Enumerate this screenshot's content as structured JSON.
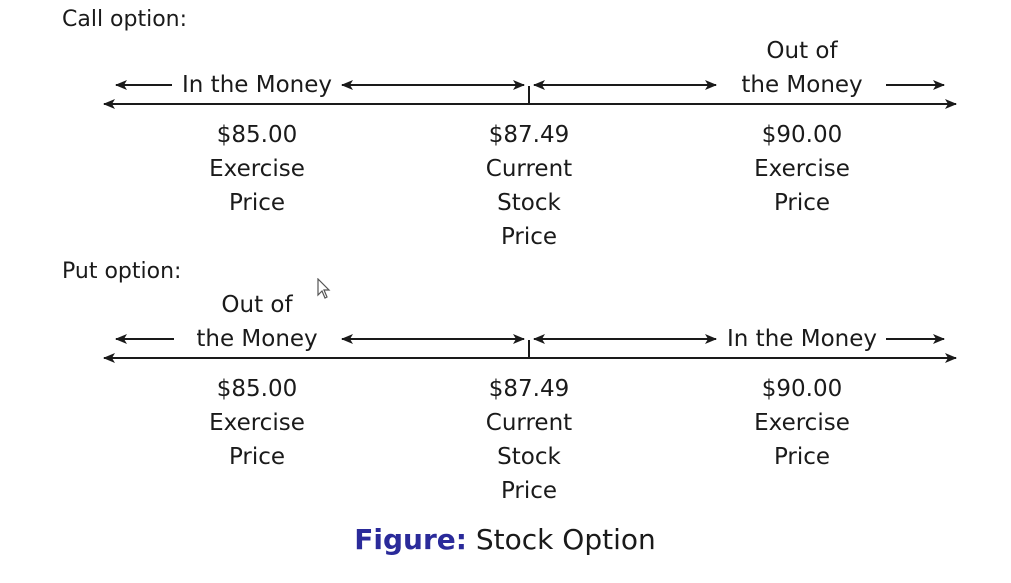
{
  "call": {
    "title": "Call option:",
    "zone_left": "In the Money",
    "zone_right_line1": "Out of",
    "zone_right_line2": "the Money",
    "left_price": {
      "value": "$85.00",
      "l1": "Exercise",
      "l2": "Price"
    },
    "center_price": {
      "value": "$87.49",
      "l1": "Current",
      "l2": "Stock",
      "l3": "Price"
    },
    "right_price": {
      "value": "$90.00",
      "l1": "Exercise",
      "l2": "Price"
    }
  },
  "put": {
    "title": "Put option:",
    "zone_left_line1": "Out of",
    "zone_left_line2": "the Money",
    "zone_right": "In the Money",
    "left_price": {
      "value": "$85.00",
      "l1": "Exercise",
      "l2": "Price"
    },
    "center_price": {
      "value": "$87.49",
      "l1": "Current",
      "l2": "Stock",
      "l3": "Price"
    },
    "right_price": {
      "value": "$90.00",
      "l1": "Exercise",
      "l2": "Price"
    }
  },
  "caption": {
    "label": "Figure:",
    "text": "Stock Option"
  }
}
